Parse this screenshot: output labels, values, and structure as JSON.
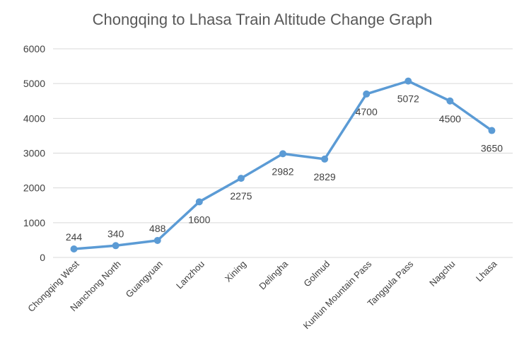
{
  "chart_data": {
    "type": "line",
    "title": "Chongqing to Lhasa Train Altitude Change Graph",
    "xlabel": "",
    "ylabel": "",
    "categories": [
      "Chongqing West",
      "Nanchong North",
      "Guangyuan",
      "Lanzhou",
      "Xining",
      "Delingha",
      "Golmud",
      "Kunlun Mountain Pass",
      "Tanggula Pass",
      "Nagchu",
      "Lhasa"
    ],
    "series": [
      {
        "values": [
          244,
          340,
          488,
          1600,
          2275,
          2982,
          2829,
          4700,
          5072,
          4500,
          3650
        ],
        "data_labels": [
          "244",
          "340",
          "488",
          "1600",
          "2275",
          "2982",
          "2829",
          "4700",
          "5072",
          "4500",
          "3650"
        ]
      }
    ],
    "ylim": [
      0,
      6000
    ],
    "yticks": [
      "0",
      "1000",
      "2000",
      "3000",
      "4000",
      "5000",
      "6000"
    ],
    "grid": true,
    "legend": "none",
    "colors": {
      "line": "#5B9BD5",
      "grid": "#D9D9D9",
      "title": "#595959"
    }
  }
}
